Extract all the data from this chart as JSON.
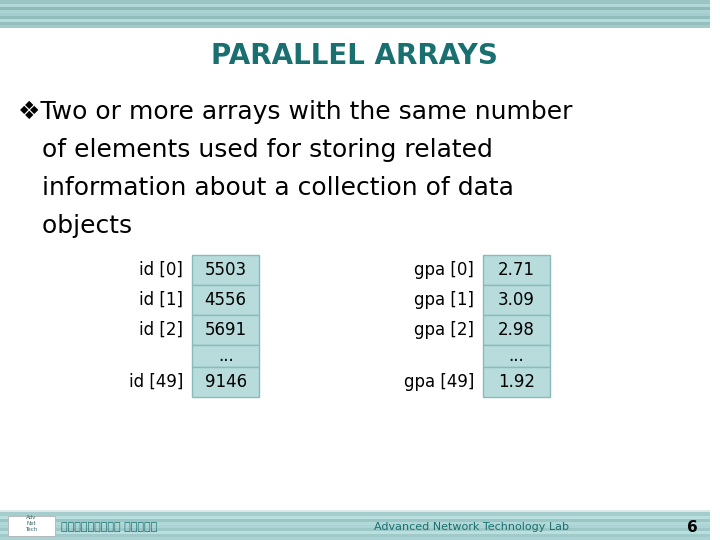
{
  "title": "PARALLEL ARRAYS",
  "title_color": "#1A7070",
  "title_fontsize": 20,
  "bullet_lines": [
    "❖Two or more arrays with the same number",
    "   of elements used for storing related",
    "   information about a collection of data",
    "   objects"
  ],
  "bullet_fontsize": 18,
  "id_labels": [
    "id [0]",
    "id [1]",
    "id [2]",
    "",
    "id [49]"
  ],
  "id_values": [
    "5503",
    "4556",
    "5691",
    "...",
    "9146"
  ],
  "gpa_labels": [
    "gpa [0]",
    "gpa [1]",
    "gpa [2]",
    "",
    "gpa [49]"
  ],
  "gpa_values": [
    "2.71",
    "3.09",
    "2.98",
    "...",
    "1.92"
  ],
  "cell_bg": "#B8DCDC",
  "cell_border": "#88BBBB",
  "background_color": "#FFFFFF",
  "footer_left": "中正大學通訊工程系 潘仁義老師",
  "footer_right": "Advanced Network Technology Lab",
  "footer_num": "6",
  "footer_color": "#1A7070",
  "stripe_color": "#7EC8C8",
  "table_fontsize": 12,
  "table_label_fontsize": 12
}
